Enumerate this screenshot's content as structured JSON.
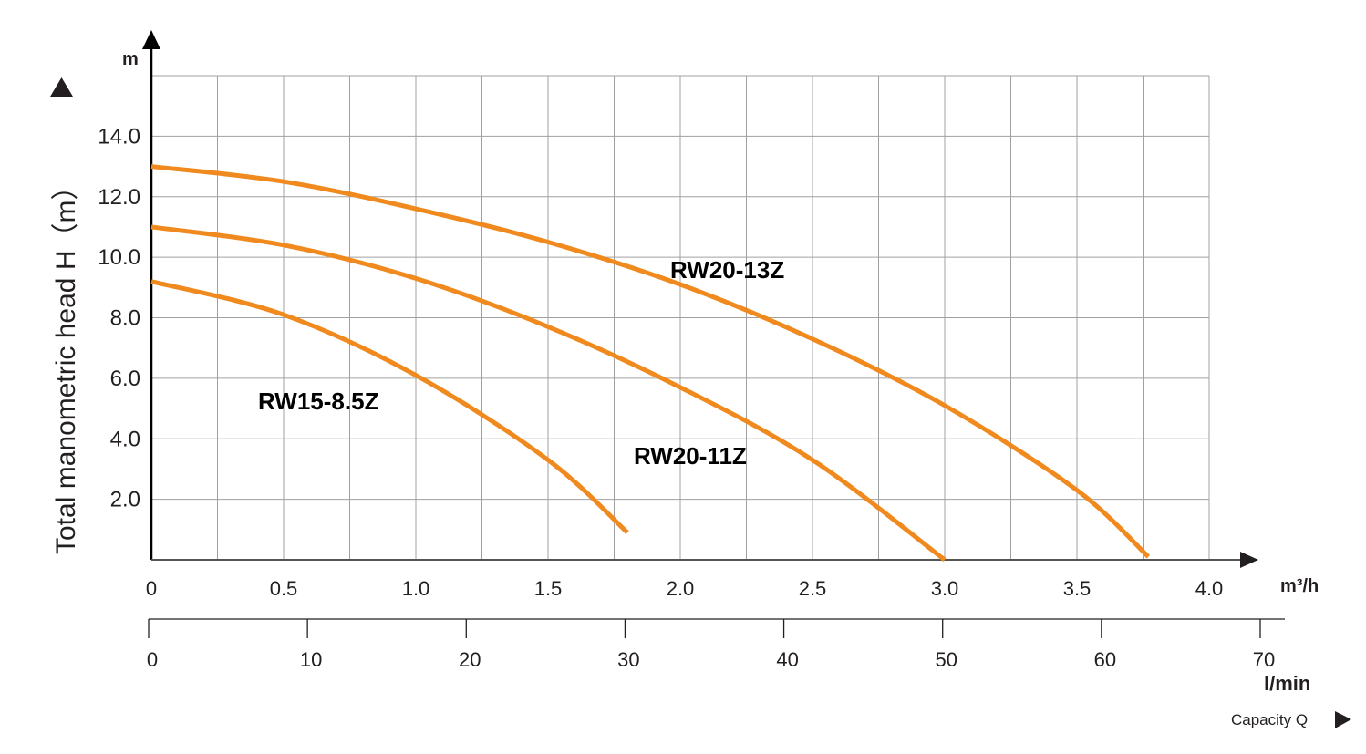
{
  "chart_data": {
    "type": "line",
    "title": "",
    "ylabel": "Total manometric head H（m）",
    "y_unit": "m",
    "x_unit": "m³/h",
    "x2_unit": "l/min",
    "xlabel": "Capacity Q",
    "xlim": [
      0,
      4.0
    ],
    "ylim": [
      0,
      16
    ],
    "x2lim": [
      0,
      70
    ],
    "grid": true,
    "x_ticks": [
      "0",
      "0.5",
      "1.0",
      "1.5",
      "2.0",
      "2.5",
      "3.0",
      "3.5",
      "4.0"
    ],
    "x_tick_values": [
      0,
      0.5,
      1.0,
      1.5,
      2.0,
      2.5,
      3.0,
      3.5,
      4.0
    ],
    "x2_ticks": [
      "0",
      "10",
      "20",
      "30",
      "40",
      "50",
      "60",
      "70"
    ],
    "x2_tick_values": [
      0,
      10,
      20,
      30,
      40,
      50,
      60,
      70
    ],
    "y_ticks": [
      "2.0",
      "4.0",
      "6.0",
      "8.0",
      "10.0",
      "12.0",
      "14.0"
    ],
    "y_tick_values": [
      2,
      4,
      6,
      8,
      10,
      12,
      14
    ],
    "series_color": "#f08a1e",
    "series": [
      {
        "name": "RW20-13Z",
        "x": [
          0,
          0.5,
          1.0,
          1.5,
          2.0,
          2.5,
          3.0,
          3.5,
          3.77
        ],
        "y": [
          13.0,
          12.5,
          11.6,
          10.5,
          9.1,
          7.3,
          5.1,
          2.3,
          0.1
        ]
      },
      {
        "name": "RW20-11Z",
        "x": [
          0,
          0.5,
          1.0,
          1.5,
          2.0,
          2.5,
          3.0
        ],
        "y": [
          11.0,
          10.4,
          9.3,
          7.7,
          5.7,
          3.3,
          0
        ]
      },
      {
        "name": "RW15-8.5Z",
        "x": [
          0,
          0.5,
          1.0,
          1.5,
          1.8
        ],
        "y": [
          9.2,
          8.1,
          6.1,
          3.3,
          0.9
        ]
      }
    ]
  }
}
